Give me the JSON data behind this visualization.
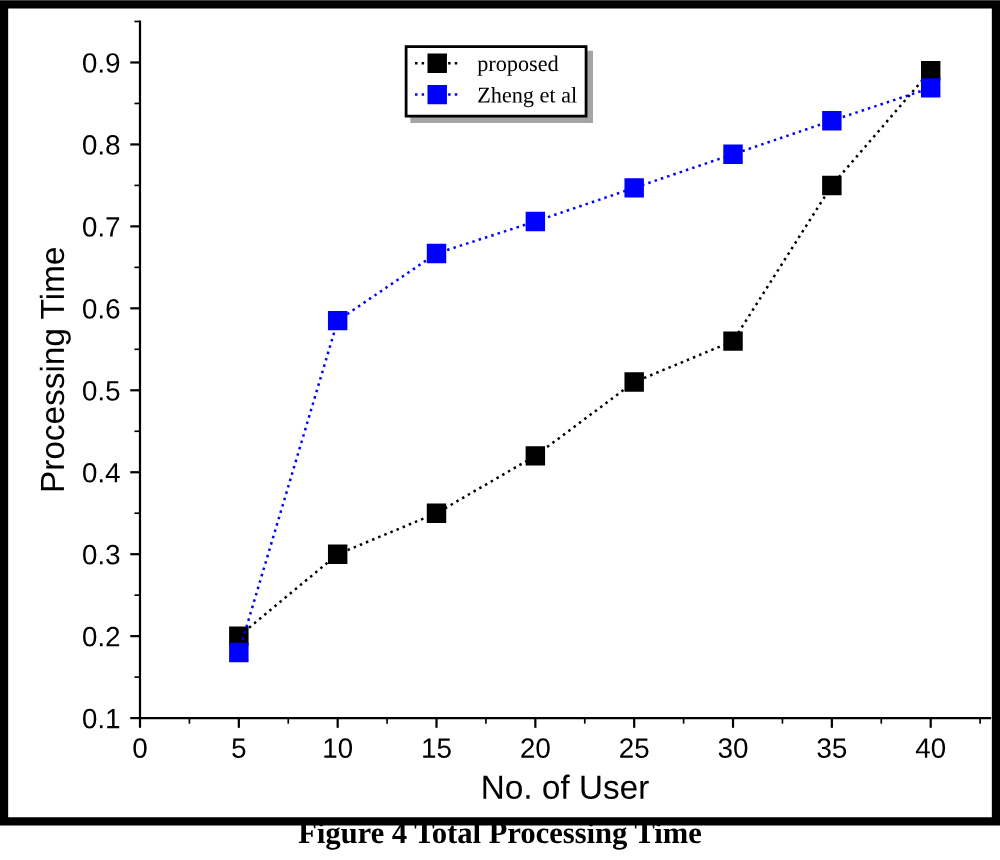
{
  "chart_data": {
    "type": "line",
    "xlabel": "No. of User",
    "ylabel": "Processing Time",
    "x": [
      5,
      10,
      15,
      20,
      25,
      30,
      35,
      40
    ],
    "series": [
      {
        "name": "proposed",
        "color": "#000000",
        "values": [
          0.2,
          0.3,
          0.35,
          0.42,
          0.51,
          0.56,
          0.75,
          0.89
        ]
      },
      {
        "name": "Zheng et al",
        "color": "#0000ff",
        "values": [
          0.18,
          0.585,
          0.667,
          0.706,
          0.747,
          0.788,
          0.829,
          0.869
        ]
      }
    ],
    "xlim": [
      0,
      43
    ],
    "xticks": [
      0,
      5,
      10,
      15,
      20,
      25,
      30,
      35,
      40
    ],
    "ylim": [
      0.1,
      0.95
    ],
    "yticks": [
      0.1,
      0.2,
      0.3,
      0.4,
      0.5,
      0.6,
      0.7,
      0.8,
      0.9
    ],
    "marker": "square",
    "line_style": "dotted",
    "legend": "top left",
    "grid": false,
    "annotations": [
      "Figure 4 Total Processing Time"
    ]
  }
}
